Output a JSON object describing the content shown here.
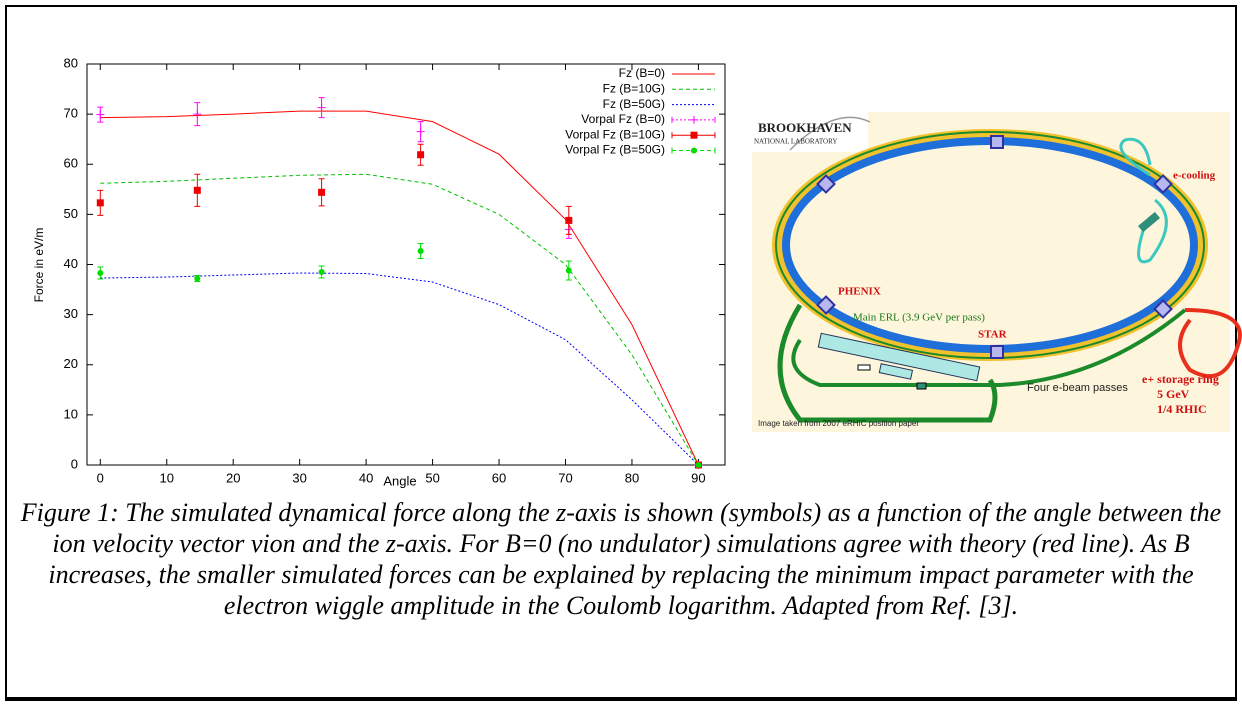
{
  "chart_data": {
    "type": "line",
    "xlabel": "Angle",
    "ylabel": "Force in eV/m",
    "xlim": [
      -2,
      94
    ],
    "ylim": [
      0,
      80
    ],
    "xticks": [
      0,
      10,
      20,
      30,
      40,
      50,
      60,
      70,
      80,
      90
    ],
    "yticks": [
      0,
      10,
      20,
      30,
      40,
      50,
      60,
      70,
      80
    ],
    "legend": "top-right",
    "series": [
      {
        "name": "Fz (B=0)",
        "color": "#ff0000",
        "line_style": "solid",
        "x": [
          0,
          10,
          20,
          30,
          40,
          50,
          60,
          70,
          80,
          90
        ],
        "values": [
          69.3,
          69.5,
          70,
          70.6,
          70.6,
          68.5,
          62,
          49,
          28,
          0
        ]
      },
      {
        "name": "Fz (B=10G)",
        "color": "#00c000",
        "line_style": "dashed",
        "x": [
          0,
          10,
          20,
          30,
          40,
          50,
          60,
          70,
          80,
          90
        ],
        "values": [
          56.2,
          56.6,
          57.2,
          57.8,
          58,
          56,
          50,
          40,
          22,
          0
        ]
      },
      {
        "name": "Fz (B=50G)",
        "color": "#0000ff",
        "line_style": "dotted",
        "x": [
          0,
          10,
          20,
          30,
          40,
          50,
          60,
          70,
          80,
          90
        ],
        "values": [
          37.3,
          37.5,
          37.9,
          38.3,
          38.2,
          36.5,
          32,
          25,
          13,
          0
        ]
      },
      {
        "name": "Vorpal Fz (B=0)",
        "color": "#ff00ff",
        "line_style": "dotted",
        "marker": "plus",
        "x": [
          0,
          14.6,
          33.3,
          48.2,
          70.5,
          90
        ],
        "values": [
          69.9,
          70,
          71.3,
          66.5,
          47,
          0
        ],
        "errors": [
          1.5,
          2.3,
          2,
          2,
          1.8,
          0
        ]
      },
      {
        "name": "Vorpal Fz (B=10G)",
        "color": "#ee0000",
        "line_style": "solid",
        "marker": "square",
        "x": [
          0,
          14.6,
          33.3,
          48.2,
          70.5,
          90
        ],
        "values": [
          52.3,
          54.8,
          54.4,
          61.9,
          48.8,
          0
        ],
        "errors": [
          2.5,
          3.2,
          2.7,
          2.1,
          2.8,
          0
        ]
      },
      {
        "name": "Vorpal Fz (B=50G)",
        "color": "#00dd00",
        "line_style": "dashed",
        "marker": "circle",
        "x": [
          0,
          14.6,
          33.3,
          48.2,
          70.5,
          90
        ],
        "values": [
          38.3,
          37.2,
          38.5,
          42.7,
          38.8,
          0
        ],
        "errors": [
          1.2,
          0.6,
          1.2,
          1.5,
          1.9,
          0
        ]
      }
    ]
  },
  "diagram": {
    "logo_title": "BROOKHAVEN",
    "logo_subtitle": "NATIONAL LABORATORY",
    "e_cooling": "e-cooling",
    "phenix": "PHENIX",
    "star": "STAR",
    "main_erl": "Main ERL (3.9 GeV per pass)",
    "passes": "Four e-beam passes",
    "storage_ring": "e+ storage ring",
    "energy": "5 GeV",
    "fraction": "1/4 RHIC",
    "credit": "Image taken from 2007 eRHIC position paper"
  },
  "caption": "Figure 1: The simulated dynamical force along the z-axis is shown (symbols) as a function of the angle between the ion velocity vector vion and the z-axis.  For B=0 (no undulator) simulations agree with theory (red line).  As B increases, the smaller simulated forces can be explained by replacing the minimum impact parameter with the electron wiggle amplitude in the Coulomb logarithm. Adapted from Ref. [3]."
}
